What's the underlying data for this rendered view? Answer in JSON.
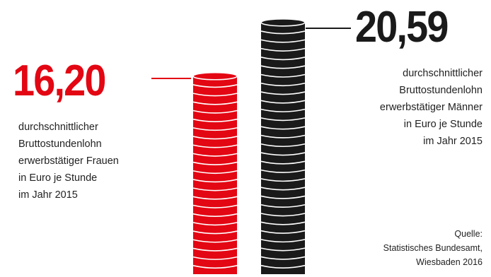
{
  "chart_data": {
    "type": "bar",
    "categories": [
      "Frauen",
      "Männer"
    ],
    "values": [
      16.2,
      20.59
    ],
    "value_labels": [
      "16,20",
      "20,59"
    ],
    "colors": [
      "#e30613",
      "#1a1a1a"
    ],
    "style": "stacked coins",
    "descriptions": [
      [
        "durchschnittlicher",
        "Bruttostundenlohn",
        "erwerbstätiger Frauen",
        "in Euro je Stunde",
        "im Jahr 2015"
      ],
      [
        "durchschnittlicher",
        "Bruttostundenlohn",
        "erwerbstätiger Männer",
        "in Euro je Stunde",
        "im Jahr 2015"
      ]
    ],
    "source": [
      "Quelle:",
      "Statistisches Bundesamt,",
      "Wiesbaden 2016"
    ]
  }
}
